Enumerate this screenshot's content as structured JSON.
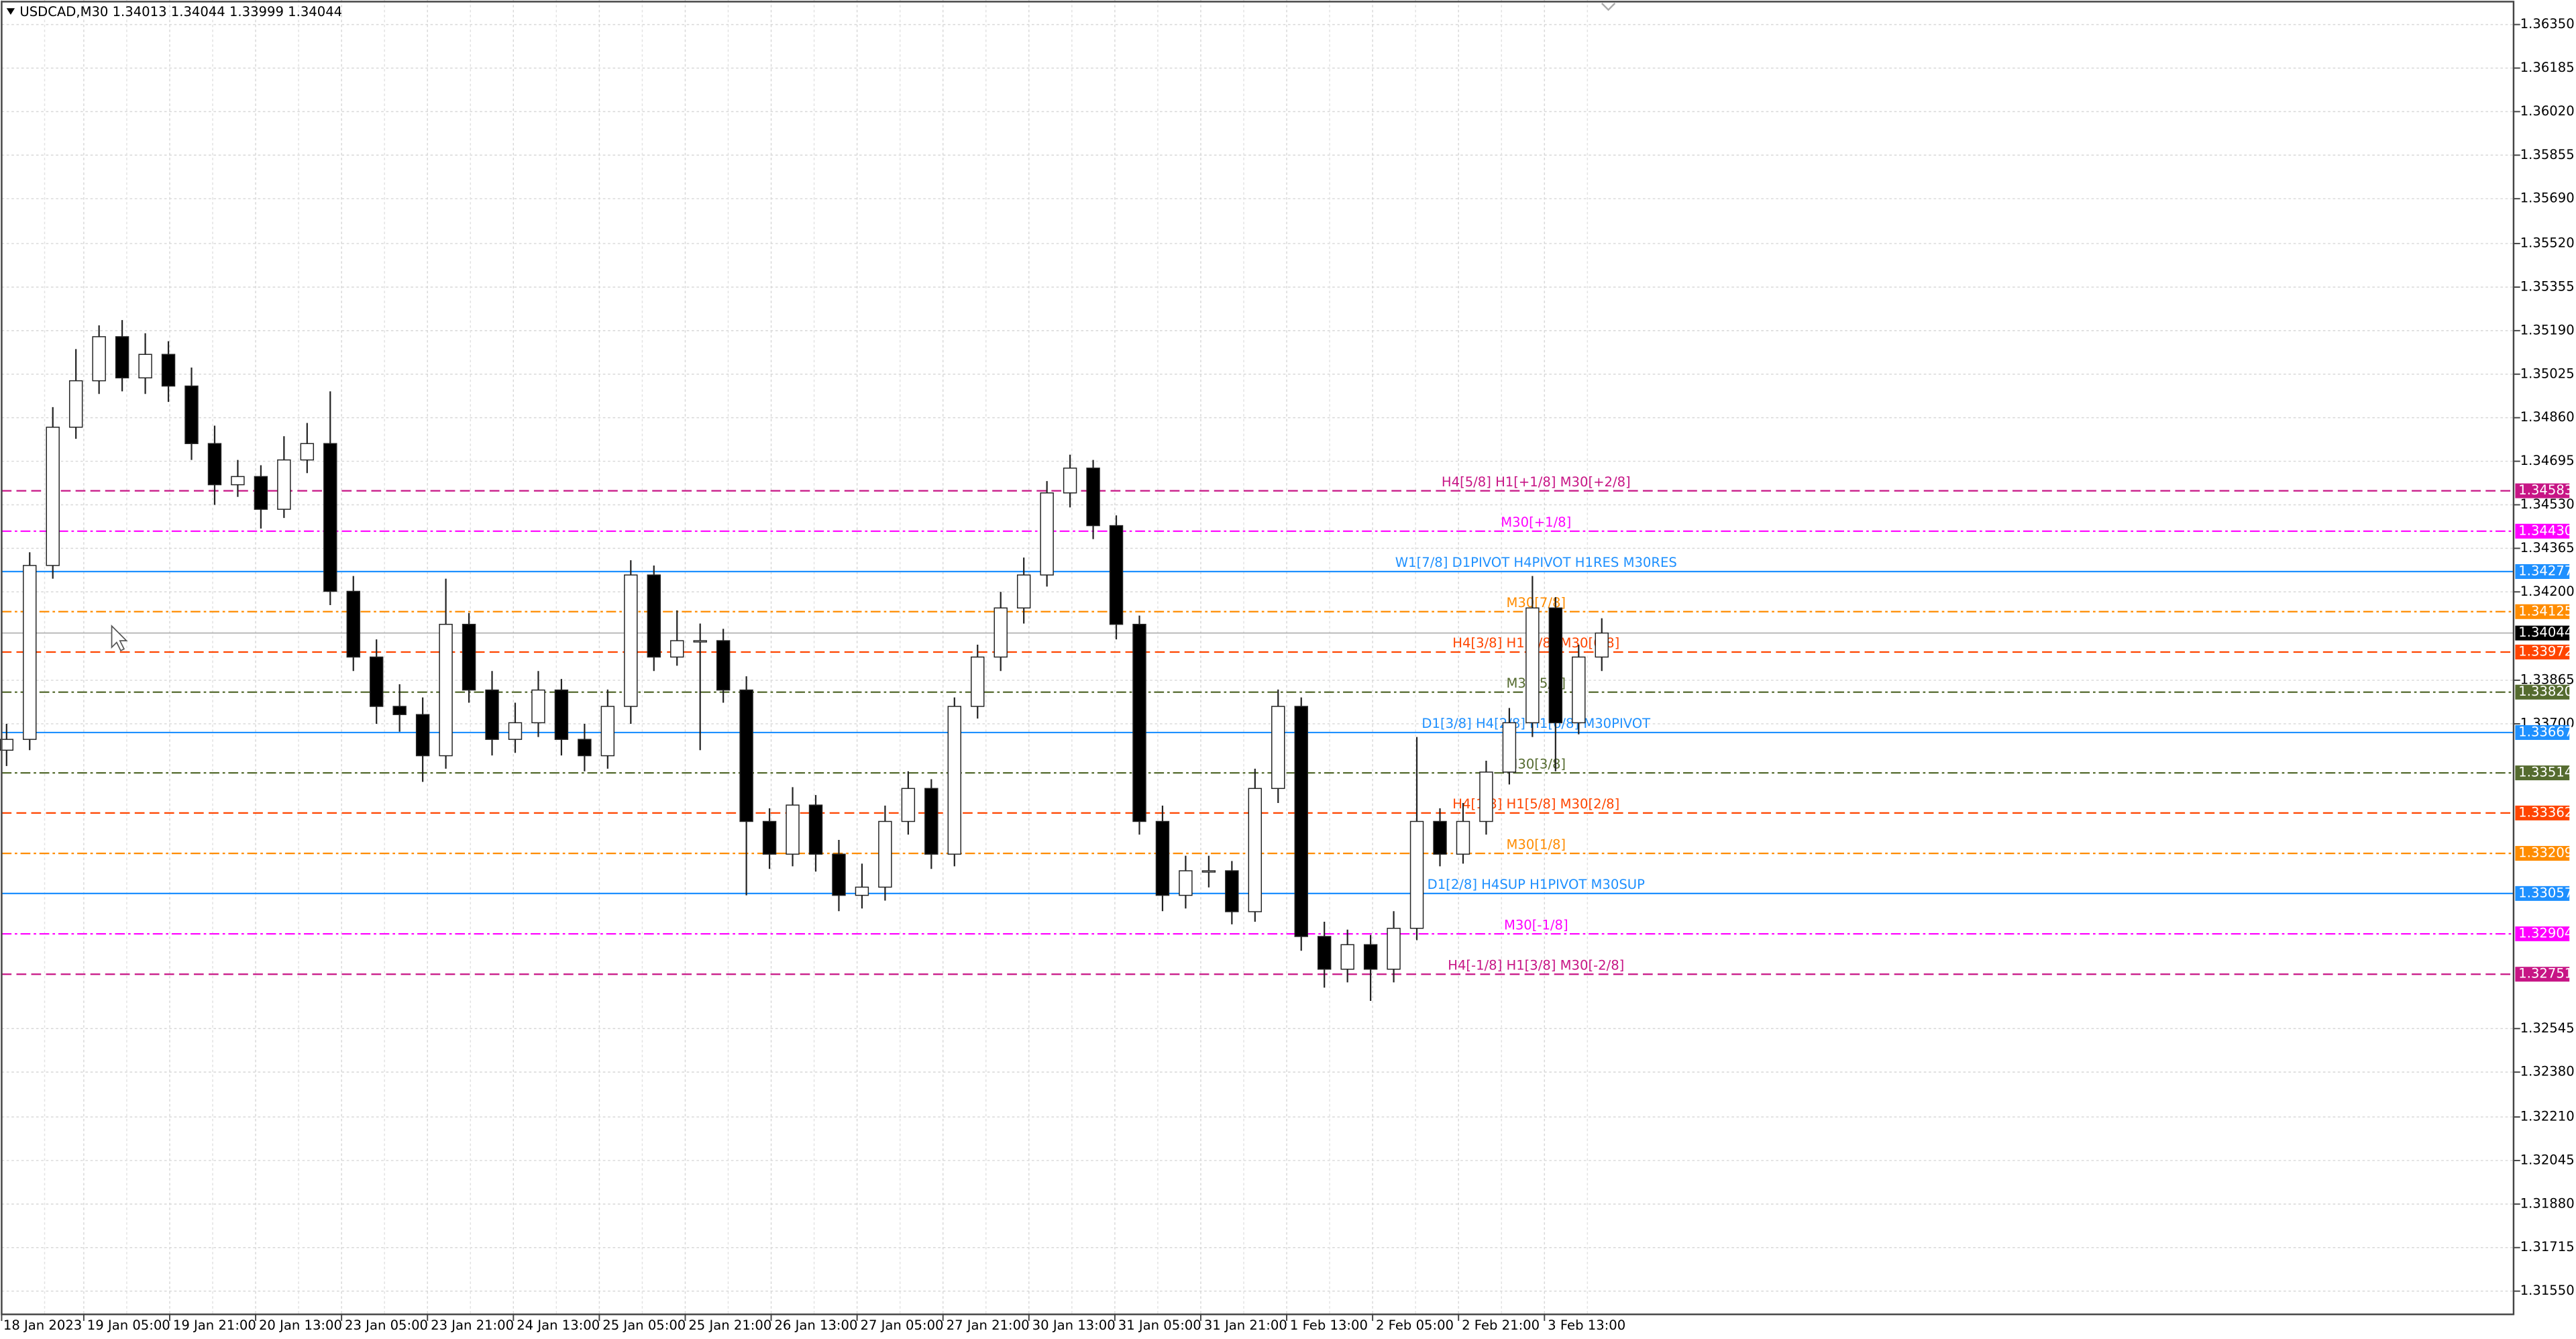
{
  "chart_data": {
    "type": "candlestick",
    "title": "USDCAD,M30  1.34013 1.34044 1.33999 1.34044",
    "grid": true,
    "ylim": [
      1.31462,
      1.36443
    ],
    "yticks": [
      {
        "value": 1.3635,
        "label": "1.36350"
      },
      1.36185,
      {
        "value": 1.3602,
        "label": "1.36020"
      },
      1.35855,
      {
        "value": 1.3569,
        "label": "1.35690"
      },
      {
        "value": 1.3552,
        "label": "1.35520"
      },
      1.35355,
      {
        "value": 1.3519,
        "label": "1.35190"
      },
      1.35025,
      {
        "value": 1.3486,
        "label": "1.34860"
      },
      1.34695,
      {
        "value": 1.3453,
        "label": "1.34530"
      },
      1.34365,
      {
        "value": 1.342,
        "label": "1.34200"
      },
      1.33865,
      {
        "value": 1.337,
        "label": "1.33700"
      },
      1.32545,
      {
        "value": 1.3238,
        "label": "1.32380"
      },
      {
        "value": 1.3221,
        "label": "1.32210"
      },
      1.32045,
      {
        "value": 1.3188,
        "label": "1.31880"
      },
      1.31715,
      {
        "value": 1.3155,
        "label": "1.31550"
      }
    ],
    "categories": [
      "18 Jan 2023",
      "19 Jan 05:00",
      "19 Jan 21:00",
      "20 Jan 13:00",
      "23 Jan 05:00",
      "23 Jan 21:00",
      "24 Jan 13:00",
      "25 Jan 05:00",
      "25 Jan 21:00",
      "26 Jan 13:00",
      "27 Jan 05:00",
      "27 Jan 21:00",
      "30 Jan 13:00",
      "31 Jan 05:00",
      "31 Jan 21:00",
      "1 Feb 13:00",
      "2 Feb 05:00",
      "2 Feb 21:00",
      "3 Feb 13:00"
    ],
    "up_color": "#ffffff",
    "down_color": "#000000",
    "outline_color": "#222222",
    "open": [
      1.336,
      1.33641,
      1.343,
      1.34824,
      1.35,
      1.35167,
      1.35011,
      1.351,
      1.3498,
      1.34762,
      1.34606,
      1.34637,
      1.34513,
      1.347,
      1.34762,
      1.34202,
      1.33953,
      1.33766,
      1.33735,
      1.33579,
      1.34077,
      1.33828,
      1.33641,
      1.33704,
      1.33828,
      1.33641,
      1.33579,
      1.33766,
      1.34264,
      1.33953,
      1.34015,
      1.34015,
      1.33828,
      1.3333,
      1.33206,
      1.33392,
      1.33206,
      1.3305,
      1.33081,
      1.3333,
      1.33455,
      1.33206,
      1.33766,
      1.33953,
      1.34139,
      1.34264,
      1.34575,
      1.34669,
      1.34451,
      1.34077,
      1.3333,
      1.3305,
      1.33143,
      1.33143,
      1.32988,
      1.33455,
      1.33766,
      1.32894,
      1.3277,
      1.32863,
      1.3277,
      1.32925,
      1.3333,
      1.33206,
      1.3333,
      1.33517,
      1.33704,
      1.34139,
      1.33704,
      1.33953
    ],
    "high": [
      1.337,
      1.3435,
      1.349,
      1.3512,
      1.3521,
      1.3523,
      1.3518,
      1.3515,
      1.3505,
      1.3483,
      1.347,
      1.3468,
      1.3479,
      1.3484,
      1.3496,
      1.3426,
      1.3402,
      1.3385,
      1.338,
      1.3425,
      1.3412,
      1.339,
      1.3378,
      1.339,
      1.3387,
      1.337,
      1.3383,
      1.3432,
      1.343,
      1.3413,
      1.3408,
      1.3406,
      1.3388,
      1.3338,
      1.3346,
      1.3343,
      1.3326,
      1.3317,
      1.3339,
      1.3352,
      1.3349,
      1.338,
      1.34,
      1.342,
      1.3433,
      1.3462,
      1.3472,
      1.347,
      1.3449,
      1.3411,
      1.3339,
      1.332,
      1.332,
      1.3318,
      1.3353,
      1.3383,
      1.338,
      1.3295,
      1.3292,
      1.329,
      1.3299,
      1.3365,
      1.3338,
      1.334,
      1.3356,
      1.3376,
      1.3426,
      1.3418,
      1.34,
      1.341
    ],
    "low": [
      1.3354,
      1.336,
      1.3425,
      1.3478,
      1.3495,
      1.3496,
      1.3495,
      1.3492,
      1.347,
      1.3453,
      1.3456,
      1.3444,
      1.3448,
      1.3465,
      1.3415,
      1.339,
      1.337,
      1.3367,
      1.3348,
      1.3353,
      1.3378,
      1.3358,
      1.3359,
      1.3365,
      1.3358,
      1.3352,
      1.3353,
      1.337,
      1.339,
      1.3392,
      1.336,
      1.3378,
      1.3305,
      1.3315,
      1.3316,
      1.3314,
      1.3299,
      1.33,
      1.3303,
      1.3328,
      1.3315,
      1.3316,
      1.3372,
      1.339,
      1.3408,
      1.3422,
      1.3452,
      1.344,
      1.3402,
      1.3328,
      1.3299,
      1.33,
      1.3308,
      1.3294,
      1.3295,
      1.334,
      1.3284,
      1.327,
      1.3272,
      1.3265,
      1.3272,
      1.3288,
      1.3316,
      1.3317,
      1.3328,
      1.3347,
      1.3365,
      1.3352,
      1.3366,
      1.339
    ],
    "close": [
      1.33641,
      1.343,
      1.34824,
      1.35,
      1.35167,
      1.35011,
      1.351,
      1.3498,
      1.34762,
      1.34606,
      1.34637,
      1.34513,
      1.347,
      1.34762,
      1.34202,
      1.33953,
      1.33766,
      1.33735,
      1.33579,
      1.34077,
      1.33828,
      1.33641,
      1.33704,
      1.33828,
      1.33641,
      1.33579,
      1.33766,
      1.34264,
      1.33953,
      1.34015,
      1.34015,
      1.33828,
      1.3333,
      1.33206,
      1.33392,
      1.33206,
      1.3305,
      1.33081,
      1.3333,
      1.33455,
      1.33206,
      1.33766,
      1.33953,
      1.34139,
      1.34264,
      1.34575,
      1.34669,
      1.34451,
      1.34077,
      1.3333,
      1.3305,
      1.33143,
      1.33143,
      1.32988,
      1.33455,
      1.33766,
      1.32894,
      1.3277,
      1.32863,
      1.3277,
      1.32925,
      1.3333,
      1.33206,
      1.3333,
      1.33517,
      1.33704,
      1.34139,
      1.33704,
      1.33953,
      1.34044
    ],
    "current_price": 1.34044,
    "current_color": "#000000",
    "levels": [
      {
        "value": 1.34583,
        "text": "H4[5/8] H1[+1/8] M30[+2/8]",
        "color": "#c71585",
        "style": "dashed"
      },
      {
        "value": 1.3443,
        "value_label": "1.34430",
        "text": "M30[+1/8]",
        "color": "#ff00ff",
        "style": "dashdot"
      },
      {
        "value": 1.34277,
        "text": "W1[7/8] D1PIVOT H4PIVOT H1RES M30RES",
        "color": "#1e90ff",
        "style": "solid"
      },
      {
        "value": 1.34125,
        "text": "M30[7/8]",
        "color": "#ff8c00",
        "style": "dashdot"
      },
      {
        "value": 1.33972,
        "text": "H4[3/8] H1[7/8] M30[6/8]",
        "color": "#ff4500",
        "style": "dashed"
      },
      {
        "value": 1.3382,
        "value_label": "1.33820",
        "text": "M30[5/8]",
        "color": "#556b2f",
        "style": "dashdot"
      },
      {
        "value": 1.33667,
        "text": "D1[3/8] H4[2/8] H1[6/8] M30PIVOT",
        "color": "#1e90ff",
        "style": "solid"
      },
      {
        "value": 1.33514,
        "text": "M30[3/8]",
        "color": "#556b2f",
        "style": "dashdot"
      },
      {
        "value": 1.33362,
        "text": "H4[1/8] H1[5/8] M30[2/8]",
        "color": "#ff4500",
        "style": "dashed"
      },
      {
        "value": 1.33209,
        "text": "M30[1/8]",
        "color": "#ff8c00",
        "style": "dashdot"
      },
      {
        "value": 1.33057,
        "text": "D1[2/8] H4SUP H1PIVOT M30SUP",
        "color": "#1e90ff",
        "style": "solid"
      },
      {
        "value": 1.32904,
        "text": "M30[-1/8]",
        "color": "#ff00ff",
        "style": "dashdot"
      },
      {
        "value": 1.32751,
        "text": "H4[-1/8] H1[3/8] M30[-2/8]",
        "color": "#c71585",
        "style": "dashed"
      }
    ]
  }
}
